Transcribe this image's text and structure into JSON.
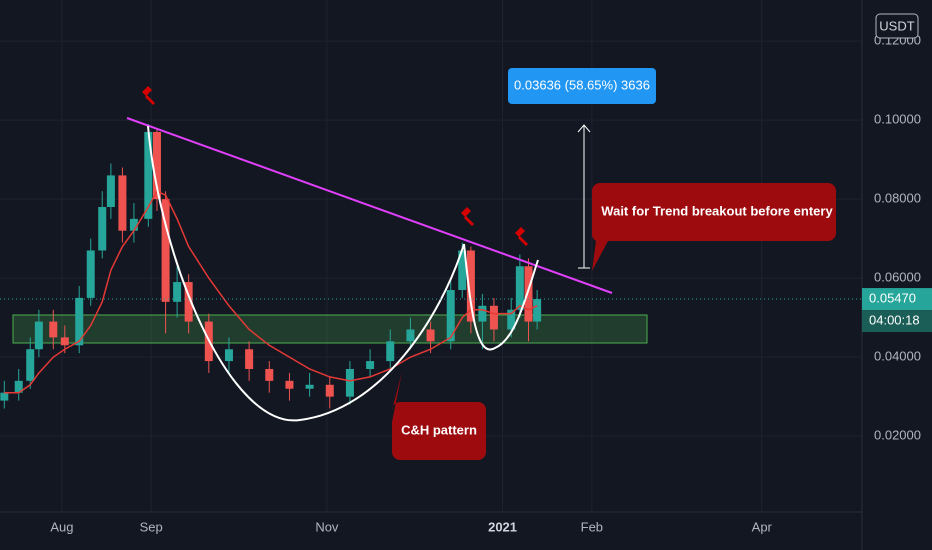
{
  "chart_data": {
    "type": "candlestick",
    "currency": "USDT",
    "x": [
      -20,
      -15,
      -11,
      -8,
      -3,
      1,
      6,
      10,
      14,
      17,
      21,
      25,
      30,
      33,
      36,
      40,
      44,
      51,
      58,
      65,
      72,
      79,
      86,
      93,
      100,
      107,
      114,
      121,
      128,
      135,
      139,
      142,
      146,
      150,
      156,
      159,
      162,
      165
    ],
    "open": [
      0.029,
      0.031,
      0.034,
      0.042,
      0.049,
      0.045,
      0.043,
      0.055,
      0.067,
      0.078,
      0.086,
      0.072,
      0.075,
      0.097,
      0.08,
      0.054,
      0.059,
      0.049,
      0.039,
      0.042,
      0.037,
      0.034,
      0.032,
      0.033,
      0.03,
      0.037,
      0.039,
      0.044,
      0.047,
      0.044,
      0.057,
      0.067,
      0.049,
      0.053,
      0.047,
      0.052,
      0.063,
      0.049
    ],
    "high": [
      0.034,
      0.037,
      0.045,
      0.052,
      0.052,
      0.048,
      0.058,
      0.07,
      0.082,
      0.089,
      0.088,
      0.079,
      0.099,
      0.098,
      0.082,
      0.063,
      0.061,
      0.051,
      0.045,
      0.044,
      0.039,
      0.036,
      0.036,
      0.035,
      0.039,
      0.042,
      0.047,
      0.05,
      0.049,
      0.06,
      0.069,
      0.068,
      0.056,
      0.055,
      0.055,
      0.066,
      0.065,
      0.057
    ],
    "low": [
      0.027,
      0.029,
      0.032,
      0.04,
      0.042,
      0.041,
      0.041,
      0.053,
      0.065,
      0.075,
      0.069,
      0.069,
      0.073,
      0.077,
      0.046,
      0.05,
      0.046,
      0.036,
      0.036,
      0.034,
      0.031,
      0.029,
      0.03,
      0.027,
      0.028,
      0.035,
      0.037,
      0.042,
      0.041,
      0.042,
      0.055,
      0.046,
      0.042,
      0.044,
      0.045,
      0.05,
      0.044,
      0.047
    ],
    "close": [
      0.031,
      0.034,
      0.042,
      0.049,
      0.045,
      0.043,
      0.055,
      0.067,
      0.078,
      0.086,
      0.072,
      0.075,
      0.097,
      0.08,
      0.054,
      0.059,
      0.049,
      0.039,
      0.042,
      0.037,
      0.034,
      0.032,
      0.033,
      0.03,
      0.037,
      0.039,
      0.044,
      0.047,
      0.044,
      0.057,
      0.067,
      0.049,
      0.053,
      0.047,
      0.052,
      0.063,
      0.049,
      0.0547
    ],
    "up_color": "#26a69a",
    "down_color": "#ef5350",
    "series": [
      {
        "color": "#e53935",
        "values": [
          0.031,
          0.031,
          0.033,
          0.036,
          0.04,
          0.042,
          0.044,
          0.048,
          0.054,
          0.062,
          0.068,
          0.072,
          0.078,
          0.082,
          0.081,
          0.075,
          0.068,
          0.06,
          0.053,
          0.047,
          0.043,
          0.04,
          0.037,
          0.035,
          0.034,
          0.035,
          0.037,
          0.04,
          0.042,
          0.045,
          0.05,
          0.052,
          0.052,
          0.051,
          0.051,
          0.053,
          0.052,
          0.053
        ]
      }
    ],
    "xlim": [
      -21.5,
      277.8
    ],
    "xticks": [
      {
        "value": 0,
        "label": "Aug"
      },
      {
        "value": 31,
        "label": "Sep"
      },
      {
        "value": 92,
        "label": "Nov"
      },
      {
        "value": 153,
        "label": "2021"
      },
      {
        "value": 184,
        "label": "Feb"
      },
      {
        "value": 243,
        "label": "Apr"
      }
    ],
    "ylim": [
      0.0008,
      0.1304
    ],
    "yticks": [
      {
        "value": 0.02,
        "label": "0.02000"
      },
      {
        "value": 0.04,
        "label": "0.04000"
      },
      {
        "value": 0.06,
        "label": "0.06000"
      },
      {
        "value": 0.08,
        "label": "0.08000"
      },
      {
        "value": 0.1,
        "label": "0.10000"
      },
      {
        "value": 0.12,
        "label": "0.12000"
      }
    ],
    "grid": true,
    "last_price": {
      "value": 0.0547,
      "label": "0.05470"
    },
    "countdown": "04:00:18",
    "annotations": [
      "0.03636 (58.65%) 3636",
      "Wait for Trend breakout before entery",
      "C&H pattern"
    ]
  }
}
